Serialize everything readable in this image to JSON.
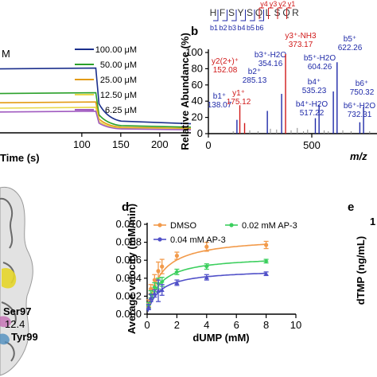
{
  "panels": {
    "a": {
      "unit_fragment": "M"
    },
    "b": {
      "letter": "b"
    },
    "c": {
      "labels": [
        "Ser97",
        "12.4",
        "Tyr99"
      ]
    },
    "d": {
      "letter": "d"
    },
    "e": {
      "letter": "e",
      "ylabel": "dTMP (ng/mL)",
      "top_tick": "1"
    }
  },
  "colors": {
    "c100": "#1b2f8c",
    "c50": "#2aa02a",
    "c25": "#e39b12",
    "c12": "#e8d84a",
    "c6": "#a05ac0",
    "b_ion": "#1f2aa8",
    "y_ion": "#d01818",
    "dmso": "#f29a4a",
    "ap02": "#3ccf5e",
    "ap04": "#5050c8"
  },
  "chart_data": [
    {
      "type": "line",
      "panel": "a",
      "xlabel": "Time (s)",
      "ylabel": "",
      "xlim": [
        -5,
        240
      ],
      "ylim": [
        0,
        1
      ],
      "x_ticks": [
        "100",
        "150",
        "200"
      ],
      "association_end": 120,
      "series": [
        {
          "name": "100.00 μM",
          "color": "#1b2f8c",
          "y": 0.84
        },
        {
          "name": "50.00 μM",
          "color": "#2aa02a",
          "y": 0.52
        },
        {
          "name": "25.00 μM",
          "color": "#e39b12",
          "y": 0.4
        },
        {
          "name": "12.50 μM",
          "color": "#e8d84a",
          "y": 0.33
        },
        {
          "name": "6.25 μM",
          "color": "#a05ac0",
          "y": 0.28
        }
      ]
    },
    {
      "type": "bar",
      "panel": "b",
      "xlabel": "m/z",
      "ylabel": "Relative Abundance (%)",
      "xlim": [
        0,
        800
      ],
      "ylim": [
        0,
        100
      ],
      "x_ticks": [
        "0",
        "500"
      ],
      "y_ticks": [
        "0",
        "20",
        "40",
        "60",
        "80",
        "100"
      ],
      "sequence": [
        "H",
        "F",
        "S",
        "Y",
        "S",
        "Q",
        "L",
        "S",
        "Q",
        "R"
      ],
      "highlight_residue": "L",
      "b_ions_row": [
        "b1",
        "b2",
        "b3",
        "b4",
        "b5",
        "b6"
      ],
      "y_ions_row": [
        "y4",
        "y3",
        "y2",
        "y1"
      ],
      "peaks": [
        {
          "mz": 138.07,
          "abundance": 17,
          "label": "b1⁺\n138.07",
          "ion": "b"
        },
        {
          "mz": 152.08,
          "abundance": 35,
          "label": "y2(2+)⁺\n152.08",
          "ion": "y"
        },
        {
          "mz": 175.12,
          "abundance": 13,
          "label": "y1⁺\n175.12",
          "ion": "y"
        },
        {
          "mz": 285.13,
          "abundance": 28,
          "label": "b2⁺\n285.13",
          "ion": "b"
        },
        {
          "mz": 354.16,
          "abundance": 49,
          "label": "b3⁺-H2O\n354.16",
          "ion": "b"
        },
        {
          "mz": 373.17,
          "abundance": 98,
          "label": "y3⁺-NH3\n373.17",
          "ion": "y"
        },
        {
          "mz": 517.22,
          "abundance": 19,
          "label": "b4⁺-H2O\n517.22",
          "ion": "b"
        },
        {
          "mz": 535.23,
          "abundance": 35,
          "label": "b4⁺\n535.23",
          "ion": "b"
        },
        {
          "mz": 604.26,
          "abundance": 52,
          "label": "b5⁺-H2O\n604.26",
          "ion": "b"
        },
        {
          "mz": 622.26,
          "abundance": 88,
          "label": "b5⁺\n622.26",
          "ion": "b"
        },
        {
          "mz": 732.31,
          "abundance": 14,
          "label": "b6⁺-H2O\n732.31",
          "ion": "b"
        },
        {
          "mz": 750.32,
          "abundance": 33,
          "label": "b6⁺\n750.32",
          "ion": "b"
        }
      ]
    },
    {
      "type": "scatter",
      "panel": "d",
      "xlabel": "dUMP (mM)",
      "ylabel": "Average velocity (mM/min)",
      "xlim": [
        0,
        10
      ],
      "ylim": [
        0,
        0.01
      ],
      "x_ticks": [
        "0",
        "2",
        "4",
        "6",
        "8",
        "10"
      ],
      "y_ticks": [
        "0.000",
        "0.002",
        "0.004",
        "0.006",
        "0.008",
        "0.010"
      ],
      "x": [
        0.1,
        0.25,
        0.5,
        0.75,
        1,
        2,
        4,
        8
      ],
      "legend": "top-left",
      "series": [
        {
          "name": "DMSO",
          "color": "#f29a4a",
          "values": [
            0.0012,
            0.0028,
            0.0038,
            0.0048,
            0.0053,
            0.0065,
            0.0075,
            0.0077
          ],
          "err": [
            0.0004,
            0.0005,
            0.0006,
            0.001,
            0.0008,
            0.0004,
            0.0005,
            0.0004
          ]
        },
        {
          "name": "0.02 mM AP-3",
          "color": "#3ccf5e",
          "values": [
            0.001,
            0.0022,
            0.003,
            0.0034,
            0.0036,
            0.0047,
            0.0053,
            0.0059
          ],
          "err": [
            0.0003,
            0.0004,
            0.0005,
            0.0006,
            0.0005,
            0.0003,
            0.0003,
            0.0002
          ]
        },
        {
          "name": "0.04 mM AP-3",
          "color": "#5050c8",
          "values": [
            0.0008,
            0.0018,
            0.0023,
            0.0026,
            0.0027,
            0.0035,
            0.0041,
            0.0045
          ],
          "err": [
            0.0003,
            0.0004,
            0.0004,
            0.0012,
            0.0006,
            0.0003,
            0.0003,
            0.0002
          ]
        }
      ],
      "fits": [
        {
          "series": "DMSO",
          "vmax": 0.0086,
          "km": 0.85
        },
        {
          "series": "0.02 mM AP-3",
          "vmax": 0.0065,
          "km": 0.8
        },
        {
          "series": "0.04 mM AP-3",
          "vmax": 0.005,
          "km": 0.8
        }
      ]
    }
  ]
}
